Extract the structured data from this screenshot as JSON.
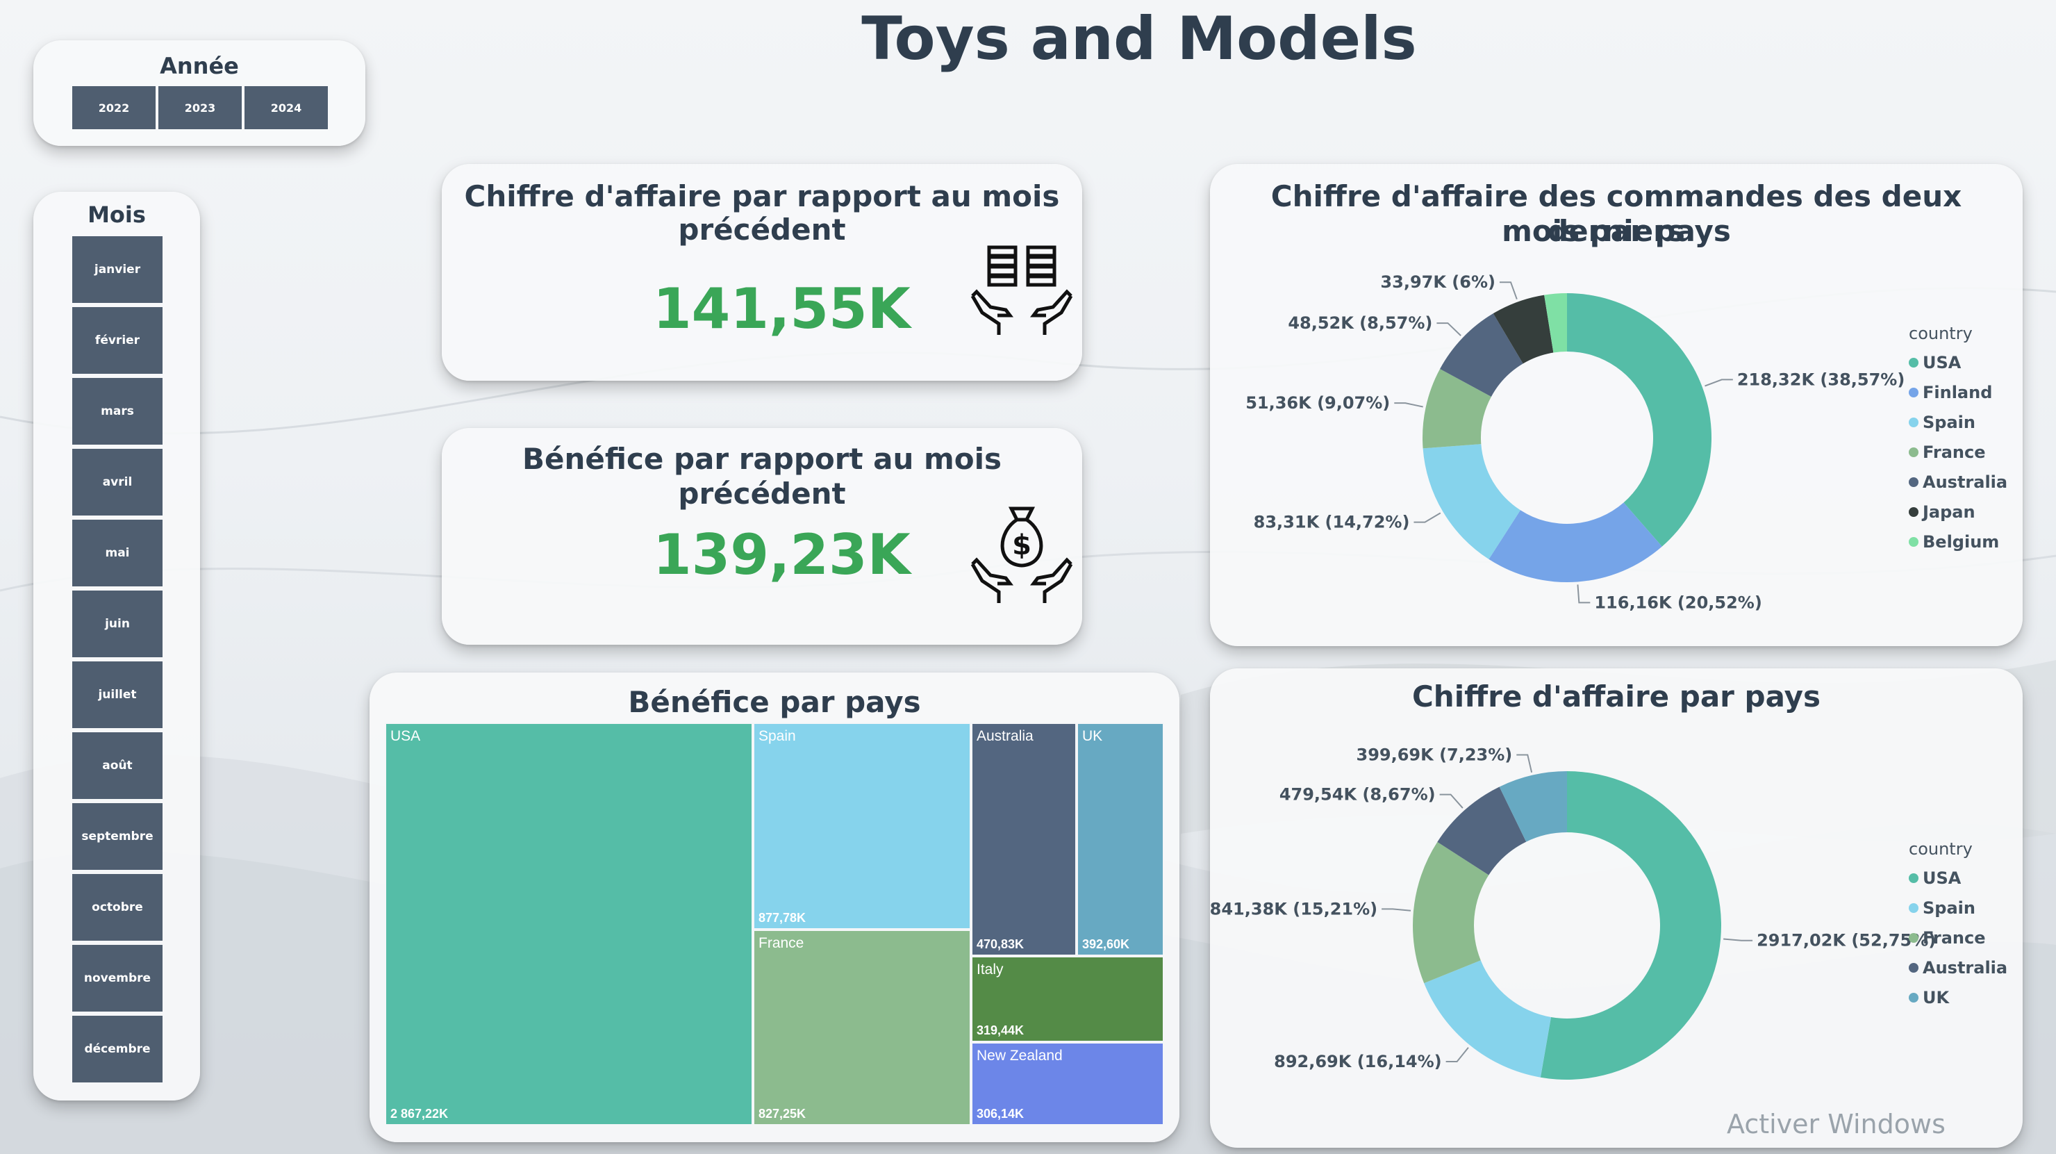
{
  "page_title": "Toys and Models",
  "year_slicer": {
    "title": "Année",
    "options": [
      "2022",
      "2023",
      "2024"
    ]
  },
  "month_slicer": {
    "title": "Mois",
    "options": [
      "janvier",
      "février",
      "mars",
      "avril",
      "mai",
      "juin",
      "juillet",
      "août",
      "septembre",
      "octobre",
      "novembre",
      "décembre"
    ]
  },
  "kpi_revenue": {
    "title_line1": "Chiffre d'affaire par rapport au mois",
    "title_line2": "précédent",
    "value": "141,55K",
    "icon": "coins-in-hands-icon"
  },
  "kpi_profit": {
    "title": "Bénéfice par rapport au mois précédent",
    "value": "139,23K",
    "icon": "money-bag-in-hands-icon"
  },
  "colors": {
    "USA": "#55bda7",
    "Finland": "#75a4e8",
    "Spain": "#86d3ec",
    "France": "#8cbb8e",
    "Australia": "#536680",
    "Japan": "#353e3c",
    "Belgium": "#7fe0a5",
    "UK": "#67a9c2",
    "Italy": "#548b47",
    "New Zealand": "#6c86e8"
  },
  "chart_data": [
    {
      "type": "pie",
      "title": "Chiffre d'affaire des commandes des deux derniers mois par pays",
      "title_line1": "Chiffre d'affaire des commandes des deux derniers",
      "title_line2": "mois par pays",
      "legend_title": "country",
      "categories": [
        "USA",
        "Finland",
        "Spain",
        "France",
        "Australia",
        "Japan",
        "Belgium"
      ],
      "values": [
        218.32,
        116.16,
        83.31,
        51.36,
        48.52,
        33.97,
        14.3
      ],
      "data_labels": [
        "218,32K (38,57%)",
        "116,16K (20,52%)",
        "83,31K (14,72%)",
        "51,36K (9,07%)",
        "48,52K (8,57%)",
        "33,97K (6%)",
        ""
      ],
      "legend_position": "right"
    },
    {
      "type": "pie",
      "title": "Chiffre d'affaire par pays",
      "legend_title": "country",
      "categories": [
        "USA",
        "Spain",
        "France",
        "Australia",
        "UK"
      ],
      "values": [
        2917.02,
        892.69,
        841.38,
        479.54,
        399.69
      ],
      "data_labels": [
        "2917,02K (52,75%)",
        "892,69K (16,14%)",
        "841,38K (15,21%)",
        "479,54K (8,67%)",
        "399,69K (7,23%)"
      ],
      "legend_position": "right"
    },
    {
      "type": "treemap",
      "title": "Bénéfice par pays",
      "categories": [
        "USA",
        "Spain",
        "France",
        "Australia",
        "UK",
        "Italy",
        "New Zealand"
      ],
      "values": [
        2867.22,
        877.78,
        827.25,
        470.83,
        392.6,
        319.44,
        306.14
      ],
      "data_labels": [
        "2 867,22K",
        "877,78K",
        "827,25K",
        "470,83K",
        "392,60K",
        "319,44K",
        "306,14K"
      ]
    }
  ],
  "watermark": "Activer Windows"
}
